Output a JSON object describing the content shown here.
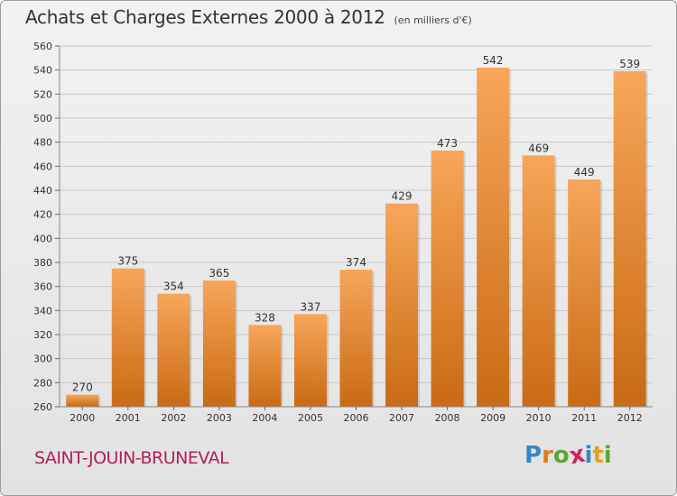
{
  "header": {
    "title": "Achats et Charges Externes 2000 à 2012",
    "subtitle": "(en milliers d'€)"
  },
  "footer": {
    "place": "SAINT-JOUIN-BRUNEVAL",
    "brand_letters": [
      {
        "char": "P",
        "color": "#3a86c8"
      },
      {
        "char": "r",
        "color": "#e77b1d"
      },
      {
        "char": "o",
        "color": "#5aa832"
      },
      {
        "char": "x",
        "color": "#d3235f"
      },
      {
        "char": "i",
        "color": "#3a86c8"
      },
      {
        "char": "t",
        "color": "#e7a21d"
      },
      {
        "char": "i",
        "color": "#5aa832"
      }
    ]
  },
  "colors": {
    "bar_top": "#f7a659",
    "bar_bottom": "#c96a14",
    "grid": "#c8c8c8",
    "axis_text": "#333333"
  },
  "chart_data": {
    "type": "bar",
    "title": "Achats et Charges Externes 2000 à 2012",
    "subtitle": "(en milliers d'€)",
    "categories": [
      "2000",
      "2001",
      "2002",
      "2003",
      "2004",
      "2005",
      "2006",
      "2007",
      "2008",
      "2009",
      "2010",
      "2011",
      "2012"
    ],
    "values": [
      270,
      375,
      354,
      365,
      328,
      337,
      374,
      429,
      473,
      542,
      469,
      449,
      539
    ],
    "ylim": [
      260,
      560
    ],
    "yticks": [
      260,
      280,
      300,
      320,
      340,
      360,
      380,
      400,
      420,
      440,
      460,
      480,
      500,
      520,
      540,
      560
    ],
    "grid": true,
    "data_labels": true,
    "xlabel": "",
    "ylabel": ""
  }
}
